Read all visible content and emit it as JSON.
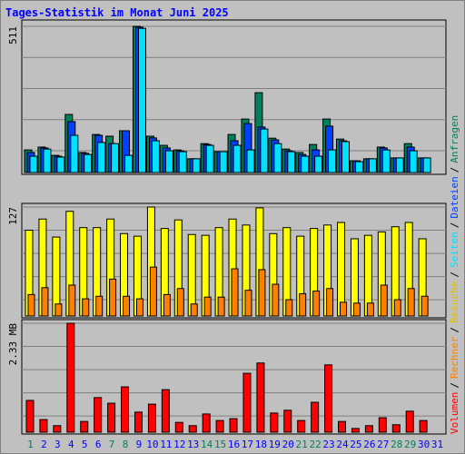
{
  "chart_data": {
    "type": "bar",
    "title": "Tages-Statistik im Monat Juni 2025",
    "legend_separator": "/",
    "categories": [
      "1",
      "2",
      "3",
      "4",
      "5",
      "6",
      "7",
      "8",
      "9",
      "10",
      "11",
      "12",
      "13",
      "14",
      "15",
      "16",
      "17",
      "18",
      "19",
      "20",
      "21",
      "22",
      "23",
      "24",
      "25",
      "26",
      "27",
      "28",
      "29",
      "30",
      "31"
    ],
    "x_label_colors": [
      "#00805c",
      "#0000ff",
      "#0000ff",
      "#0000ff",
      "#0000ff",
      "#0000ff",
      "#00805c",
      "#00805c",
      "#0000ff",
      "#0000ff",
      "#0000ff",
      "#0000ff",
      "#0000ff",
      "#00805c",
      "#00805c",
      "#0000ff",
      "#0000ff",
      "#0000ff",
      "#0000ff",
      "#0000ff",
      "#00805c",
      "#00805c",
      "#0000ff",
      "#0000ff",
      "#0000ff",
      "#0000ff",
      "#0000ff",
      "#00805c",
      "#00805c",
      "#0000ff",
      "#0000ff"
    ],
    "grid": true,
    "panels": [
      {
        "ylim": [
          0,
          511
        ],
        "yticks": [
          511
        ],
        "series": [
          {
            "name": "Anfragen",
            "color": "#00805c",
            "values": [
              79,
              89,
              60,
              203,
              70,
              133,
              127,
              146,
              511,
              127,
              95,
              79,
              48,
              101,
              73,
              133,
              187,
              279,
              120,
              82,
              70,
              98,
              187,
              117,
              41,
              48,
              89,
              51,
              101,
              51,
              null
            ]
          },
          {
            "name": "Dateien",
            "color": "#0040ff",
            "values": [
              70,
              86,
              57,
              178,
              67,
              130,
              101,
              146,
              508,
              121,
              86,
              76,
              48,
              98,
              73,
              111,
              171,
              159,
              114,
              76,
              63,
              79,
              162,
              111,
              41,
              48,
              86,
              51,
              89,
              51,
              null
            ]
          },
          {
            "name": "Seiten",
            "color": "#00e0ff",
            "values": [
              57,
              82,
              54,
              130,
              63,
              105,
              101,
              60,
              504,
              111,
              76,
              73,
              48,
              95,
              73,
              95,
              79,
              152,
              101,
              73,
              57,
              57,
              79,
              108,
              38,
              48,
              79,
              51,
              76,
              51,
              null
            ]
          }
        ]
      },
      {
        "ylim": [
          0,
          127
        ],
        "yticks": [
          127
        ],
        "series": [
          {
            "name": "Besuche",
            "color": "#ffff00",
            "values": [
              100,
              113,
              92,
              122,
              103,
              103,
              113,
              96,
              93,
              127,
              102,
              112,
              95,
              94,
              103,
              113,
              106,
              126,
              96,
              103,
              93,
              102,
              106,
              109,
              90,
              94,
              98,
              104,
              109,
              90,
              null
            ]
          },
          {
            "name": "Rechner",
            "color": "#ff8000",
            "values": [
              25,
              33,
              14,
              36,
              20,
              23,
              43,
              23,
              20,
              57,
              25,
              32,
              14,
              22,
              22,
              55,
              30,
              54,
              37,
              19,
              26,
              29,
              32,
              16,
              15,
              15,
              36,
              19,
              32,
              23,
              null
            ]
          }
        ]
      },
      {
        "ylim": [
          0,
          2.33
        ],
        "yticks": [
          {
            "value": 2.33,
            "label": "2.33 MB"
          }
        ],
        "series": [
          {
            "name": "Volumen",
            "color": "#ff0000",
            "values": [
              0.68,
              0.27,
              0.14,
              2.33,
              0.23,
              0.74,
              0.62,
              0.97,
              0.43,
              0.6,
              0.91,
              0.21,
              0.14,
              0.39,
              0.25,
              0.29,
              1.26,
              1.48,
              0.41,
              0.47,
              0.25,
              0.64,
              1.44,
              0.23,
              0.08,
              0.14,
              0.31,
              0.16,
              0.45,
              0.25,
              null
            ]
          }
        ]
      }
    ]
  }
}
